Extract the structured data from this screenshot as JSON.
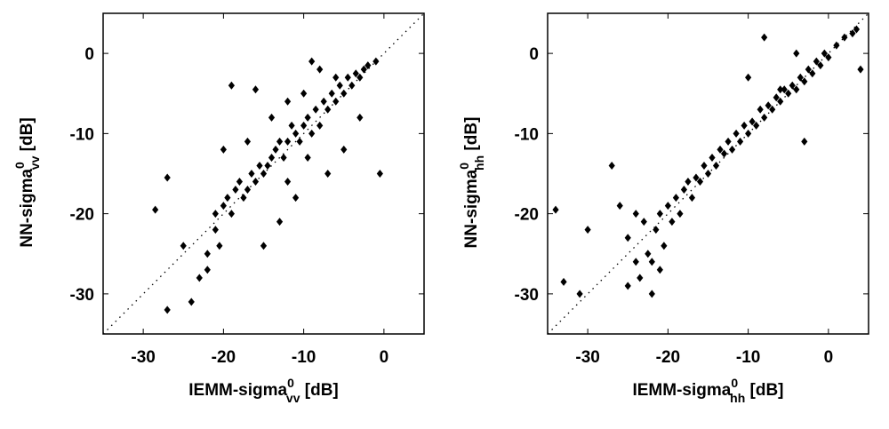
{
  "chart_data": [
    {
      "type": "scatter",
      "xlim": [
        -35,
        5
      ],
      "ylim": [
        -35,
        5
      ],
      "xticks": [
        -30,
        -20,
        -10,
        0
      ],
      "yticks": [
        -30,
        -20,
        -10,
        0
      ],
      "xlabel": {
        "text": "IEMM-sigma",
        "sup": "0",
        "sub": "vv",
        "unit": "[dB]"
      },
      "ylabel": {
        "text": "NN-sigma",
        "sup": "0",
        "sub": "vv",
        "unit": "[dB]"
      },
      "color": "#000000",
      "reference_line": "diagonal",
      "x": [
        -27,
        -27,
        -28.5,
        -24,
        -23,
        -22,
        -21,
        -20.5,
        -20,
        -19.5,
        -19,
        -18.5,
        -18,
        -17.5,
        -17,
        -16.5,
        -16,
        -15.5,
        -15,
        -14.5,
        -14,
        -13.5,
        -13,
        -12.5,
        -12,
        -11.5,
        -11,
        -10.5,
        -10,
        -9.5,
        -9,
        -8.5,
        -8,
        -7.5,
        -7,
        -6.5,
        -6,
        -5.5,
        -5,
        -4.5,
        -4,
        -3.5,
        -3,
        -2.5,
        -2,
        -1,
        -0.5,
        -19,
        -16,
        -12,
        -9,
        -8,
        -5,
        -13,
        -11,
        -7,
        -10,
        -15,
        -21,
        -25,
        -17,
        -14,
        -9.5,
        -6,
        -3,
        -12,
        -20,
        -22
      ],
      "y": [
        -15.5,
        -32,
        -19.5,
        -31,
        -28,
        -27,
        -22,
        -24,
        -19,
        -18,
        -20,
        -17,
        -16,
        -18,
        -17,
        -15,
        -16,
        -14,
        -15,
        -14,
        -13,
        -12,
        -11,
        -13,
        -11,
        -9,
        -10,
        -11,
        -9,
        -8,
        -10,
        -7,
        -9,
        -6,
        -7,
        -5,
        -6,
        -4,
        -5,
        -3,
        -4,
        -2.5,
        -3,
        -2,
        -1.5,
        -1,
        -15,
        -4,
        -4.5,
        -6,
        -1,
        -2,
        -12,
        -21,
        -18,
        -15,
        -5,
        -24,
        -20,
        -24,
        -11,
        -8,
        -13,
        -3,
        -8,
        -16,
        -12,
        -25
      ]
    },
    {
      "type": "scatter",
      "xlim": [
        -35,
        5
      ],
      "ylim": [
        -35,
        5
      ],
      "xticks": [
        -30,
        -20,
        -10,
        0
      ],
      "yticks": [
        -30,
        -20,
        -10,
        0
      ],
      "xlabel": {
        "text": "IEMM-sigma",
        "sup": "0",
        "sub": "hh",
        "unit": "[dB]"
      },
      "ylabel": {
        "text": "NN-sigma",
        "sup": "0",
        "sub": "hh",
        "unit": "[dB]"
      },
      "color": "#000000",
      "reference_line": "diagonal",
      "x": [
        -34,
        -33,
        -31,
        -30,
        -27,
        -26,
        -25,
        -24,
        -23.5,
        -23,
        -22.5,
        -22,
        -21.5,
        -21,
        -20.5,
        -20,
        -19.5,
        -19,
        -18.5,
        -18,
        -17.5,
        -17,
        -16.5,
        -16,
        -15.5,
        -15,
        -14.5,
        -14,
        -13.5,
        -13,
        -12.5,
        -12,
        -11.5,
        -11,
        -10.5,
        -10,
        -9.5,
        -9,
        -8.5,
        -8,
        -7.5,
        -7,
        -6.5,
        -6,
        -5.5,
        -5,
        -4.5,
        -4,
        -3.5,
        -3,
        -2.5,
        -2,
        -1.5,
        -1,
        -0.5,
        0,
        1,
        2,
        3,
        3.5,
        4,
        -8,
        -6,
        -4,
        -22,
        -24,
        -21,
        -25,
        -10,
        -3
      ],
      "y": [
        -19.5,
        -28.5,
        -30,
        -22,
        -14,
        -19,
        -23,
        -26,
        -28,
        -21,
        -25,
        -30,
        -22,
        -20,
        -24,
        -19,
        -21,
        -18,
        -20,
        -17,
        -16,
        -18,
        -15.5,
        -16,
        -14,
        -15,
        -13,
        -14,
        -12,
        -12.5,
        -11,
        -12,
        -10,
        -11,
        -9,
        -10,
        -8.5,
        -9,
        -7,
        -8,
        -6.5,
        -7,
        -5.5,
        -6,
        -4.5,
        -5,
        -4,
        -4.5,
        -3,
        -3.5,
        -2,
        -2.5,
        -1,
        -1.5,
        0,
        -0.5,
        1,
        2,
        2.5,
        3,
        -2,
        2,
        -4.5,
        0,
        -26,
        -20,
        -27,
        -29,
        -3,
        -11
      ]
    }
  ]
}
